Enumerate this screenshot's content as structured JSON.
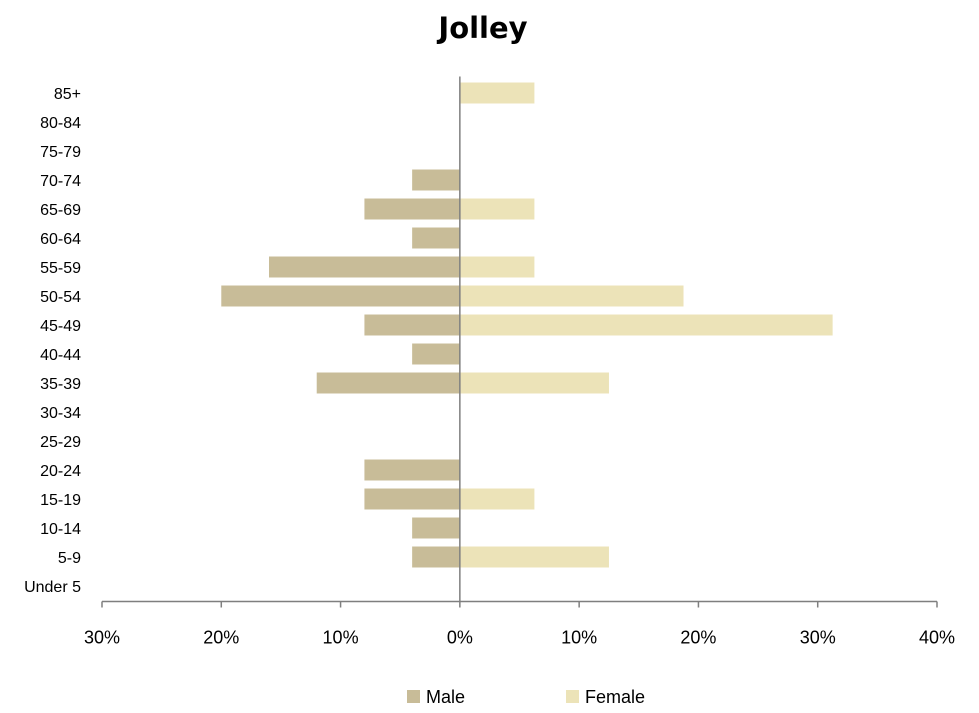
{
  "chart_data": {
    "type": "bar",
    "orientation": "horizontal",
    "title": "Jolley",
    "categories": [
      "Under 5",
      "5-9",
      "10-14",
      "15-19",
      "20-24",
      "25-29",
      "30-34",
      "35-39",
      "40-44",
      "45-49",
      "50-54",
      "55-59",
      "60-64",
      "65-69",
      "70-74",
      "75-79",
      "80-84",
      "85+"
    ],
    "series": [
      {
        "name": "Male",
        "color": "#c8bc98",
        "values": [
          0,
          4,
          4,
          8,
          8,
          0,
          0,
          12,
          4,
          8,
          20,
          16,
          4,
          8,
          4,
          0,
          0,
          0
        ]
      },
      {
        "name": "Female",
        "color": "#ece3b8",
        "values": [
          0,
          12.5,
          0,
          6.25,
          0,
          0,
          0,
          12.5,
          0,
          31.25,
          18.75,
          6.25,
          0,
          6.25,
          0,
          0,
          0,
          6.25
        ]
      }
    ],
    "x_ticks": [
      "30%",
      "20%",
      "10%",
      "0%",
      "10%",
      "20%",
      "30%",
      "40%"
    ],
    "xlim": [
      -30,
      40
    ],
    "grid": false,
    "legend_position": "bottom"
  }
}
